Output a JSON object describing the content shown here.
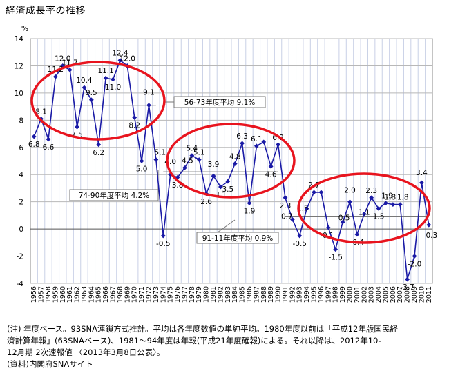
{
  "chart_data": {
    "type": "line",
    "title": "経済成長率の推移",
    "ylabel": "%",
    "ylim": [
      -4,
      14
    ],
    "y_ticks": [
      -4,
      -2,
      0,
      2,
      4,
      6,
      8,
      10,
      12,
      14
    ],
    "x": [
      "1956",
      "1957",
      "1958",
      "1959",
      "1960",
      "1961",
      "1962",
      "1963",
      "1964",
      "1965",
      "1966",
      "1967",
      "1968",
      "1969",
      "1970",
      "1971",
      "1972",
      "1973",
      "1974",
      "1975",
      "1976",
      "1977",
      "1978",
      "1979",
      "1980",
      "1981",
      "1982",
      "1983",
      "1984",
      "1985",
      "1986",
      "1987",
      "1988",
      "1989",
      "1990",
      "1991",
      "1992",
      "1993",
      "1994",
      "1995",
      "1996",
      "1997",
      "1998",
      "1999",
      "2000",
      "2001",
      "2002",
      "2003",
      "2004",
      "2005",
      "2006",
      "2007",
      "2008",
      "2009",
      "2010",
      "2011"
    ],
    "series": [
      {
        "values": [
          6.8,
          8.1,
          6.6,
          11.2,
          12.0,
          11.7,
          7.5,
          10.4,
          9.5,
          6.2,
          11.1,
          11.0,
          12.4,
          12.0,
          8.2,
          5.0,
          9.1,
          5.1,
          -0.5,
          4.0,
          3.8,
          4.5,
          5.4,
          5.1,
          2.6,
          3.9,
          3.1,
          3.5,
          4.8,
          6.3,
          1.9,
          6.1,
          6.4,
          4.6,
          6.2,
          2.3,
          0.7,
          -0.5,
          1.5,
          2.7,
          2.7,
          0.1,
          -1.5,
          0.5,
          2.0,
          -0.4,
          1.1,
          2.3,
          1.5,
          1.9,
          1.8,
          1.8,
          -3.7,
          -2.0,
          3.4,
          0.3
        ],
        "color": "#1a1aa6"
      }
    ],
    "data_labels": [
      {
        "i": 0,
        "text": "6.8"
      },
      {
        "i": 1,
        "text": "8.1"
      },
      {
        "i": 2,
        "text": "6.6"
      },
      {
        "i": 3,
        "text": "11.2"
      },
      {
        "i": 4,
        "text": "12.0"
      },
      {
        "i": 5,
        "text": "11.7"
      },
      {
        "i": 6,
        "text": "7.5"
      },
      {
        "i": 7,
        "text": "10.4"
      },
      {
        "i": 8,
        "text": "9.5"
      },
      {
        "i": 9,
        "text": "6.2"
      },
      {
        "i": 10,
        "text": "11.1"
      },
      {
        "i": 11,
        "text": "11.0"
      },
      {
        "i": 12,
        "text": "12.4"
      },
      {
        "i": 13,
        "text": "12.0"
      },
      {
        "i": 14,
        "text": "8.2"
      },
      {
        "i": 15,
        "text": "5.0"
      },
      {
        "i": 16,
        "text": "9.1"
      },
      {
        "i": 17,
        "text": "5.1"
      },
      {
        "i": 18,
        "text": "-0.5"
      },
      {
        "i": 19,
        "text": "4.0"
      },
      {
        "i": 20,
        "text": "3.8"
      },
      {
        "i": 21,
        "text": "4.5"
      },
      {
        "i": 22,
        "text": "5.4"
      },
      {
        "i": 23,
        "text": "5.1"
      },
      {
        "i": 24,
        "text": "2.6"
      },
      {
        "i": 25,
        "text": "3.9"
      },
      {
        "i": 26,
        "text": "3.1"
      },
      {
        "i": 28,
        "text": "4.8"
      },
      {
        "i": 27,
        "text": "3.5"
      },
      {
        "i": 29,
        "text": "6.3"
      },
      {
        "i": 30,
        "text": "1.9"
      },
      {
        "i": 31,
        "text": "6.1"
      },
      {
        "i": 33,
        "text": "4.6"
      },
      {
        "i": 34,
        "text": "6.2"
      },
      {
        "i": 35,
        "text": "2.3"
      },
      {
        "i": 36,
        "text": "0.7"
      },
      {
        "i": 37,
        "text": "-0.5"
      },
      {
        "i": 38,
        "text": "1.5"
      },
      {
        "i": 39,
        "text": "2.7"
      },
      {
        "i": 41,
        "text": "0.1"
      },
      {
        "i": 42,
        "text": "-1.5"
      },
      {
        "i": 43,
        "text": "0.5"
      },
      {
        "i": 44,
        "text": "2.0"
      },
      {
        "i": 45,
        "text": "-0.4"
      },
      {
        "i": 46,
        "text": "1.1"
      },
      {
        "i": 47,
        "text": "2.3"
      },
      {
        "i": 48,
        "text": "1.5"
      },
      {
        "i": 49,
        "text": "1.9"
      },
      {
        "i": 50,
        "text": "1.8"
      },
      {
        "i": 51,
        "text": "1.8"
      },
      {
        "i": 52,
        "text": "-3.7"
      },
      {
        "i": 53,
        "text": "-2.0"
      },
      {
        "i": 54,
        "text": "3.4"
      },
      {
        "i": 55,
        "text": "0.3"
      }
    ],
    "averages": [
      {
        "label": "56-73年度平均 9.1%",
        "value": 9.1,
        "from": "1956",
        "to": "1973"
      },
      {
        "label": "74-90年度平均 4.2%",
        "value": 4.2,
        "from": "1974",
        "to": "1990"
      },
      {
        "label": "91-11年度平均 0.9%",
        "value": 0.9,
        "from": "1991",
        "to": "2011"
      }
    ],
    "grid": true,
    "highlight_color": "#e8141e"
  },
  "notes": [
    "(注) 年度ベース。93SNA連鎖方式推計。平均は各年度数値の単純平均。1980年度以前は「平成12年版国民経",
    "済計算年報」(63SNAベース)、1981～94年度は年報(平成21年度確報)による。それ以降は、2012年10-",
    "12月期 2次速報値 〈2013年3月8日公表〉。",
    "(資料)内閣府SNAサイト"
  ]
}
